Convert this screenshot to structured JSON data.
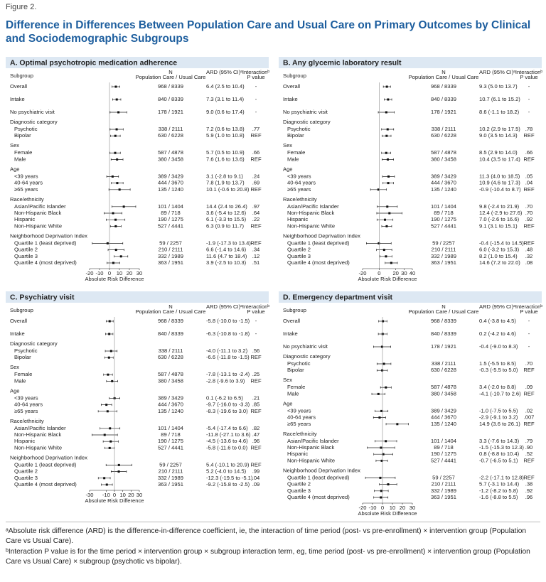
{
  "header": {
    "label": "Figure 2.",
    "title": "Difference in Differences Between Population Care and Usual Care on Primary Outcomes by Clinical and Sociodemographic Subgroups"
  },
  "chart_data": [
    {
      "type": "forest",
      "title": "A. Optimal psychotropic medication adherence",
      "column_headers": [
        "Subgroup",
        "N",
        "Population Care / Usual Care",
        "ARD (95% CI)ᵃ",
        "Interactionᵇ",
        "P value"
      ],
      "categories": [
        "Overall",
        "Intake",
        "No psychiatric visit",
        "Diagnostic category",
        "Psychotic",
        "Bipolar",
        "Sex",
        "Female",
        "Male",
        "Age",
        "<39 years",
        "40-64 years",
        "≥65 years",
        "Race/ethnicity",
        "Asian/Pacific Islander",
        "Non-Hispanic Black",
        "Hispanic",
        "Non-Hispanic White",
        "Neighborhood Deprivation Index",
        "Quartile 1 (least deprived)",
        "Quartile 2",
        "Quartile 3",
        "Quartile 4 (most deprived)"
      ],
      "n_labels": [
        "968 / 8339",
        "840 / 8339",
        "178 / 1921",
        null,
        "338 / 2111",
        "630 / 6228",
        null,
        "587 / 4878",
        "380 / 3458",
        null,
        "389 / 3429",
        "444 / 3670",
        "135 / 1240",
        null,
        "101 / 1404",
        "89 / 718",
        "190 / 1275",
        "527 / 4441",
        null,
        "59 / 2257",
        "210 / 2111",
        "332 / 1989",
        "363 / 1951"
      ],
      "values": [
        6.4,
        7.3,
        9.0,
        null,
        7.2,
        5.9,
        null,
        5.7,
        7.6,
        null,
        3.1,
        7.8,
        10.1,
        null,
        14.4,
        3.6,
        6.1,
        6.3,
        null,
        -1.9,
        6.6,
        11.6,
        3.9
      ],
      "lower": [
        2.5,
        3.1,
        0.6,
        null,
        0.6,
        1.0,
        null,
        0.5,
        1.6,
        null,
        -2.8,
        1.9,
        -0.6,
        null,
        2.4,
        -5.4,
        -3.3,
        0.9,
        null,
        -17.3,
        -1.4,
        4.7,
        -2.5
      ],
      "upper": [
        10.4,
        11.4,
        17.4,
        null,
        13.8,
        10.8,
        null,
        10.9,
        13.6,
        null,
        9.1,
        13.7,
        20.8,
        null,
        26.4,
        12.6,
        15.5,
        11.7,
        null,
        13.4,
        14.6,
        18.4,
        10.3
      ],
      "value_labels": [
        "6.4 (2.5 to 10.4)",
        "7.3 (3.1 to 11.4)",
        "9.0 (0.6 to 17.4)",
        null,
        "7.2 (0.6 to 13.8)",
        "5.9 (1.0 to 10.8)",
        null,
        "5.7 (0.5 to 10.9)",
        "7.6 (1.6 to 13.6)",
        null,
        "3.1 (-2.8 to 9.1)",
        "7.8 (1.9 to 13.7)",
        "10.1 (-0.6 to 20.8)",
        null,
        "14.4 (2.4 to 26.4)",
        "3.6 (-5.4 to 12.6)",
        "6.1 (-3.3 to 15.5)",
        "6.3 (0.9 to 11.7)",
        null,
        "-1.9 (-17.3 to 13.4)",
        "6.6 (-1.4 to 14.6)",
        "11.6 (4.7 to 18.4)",
        "3.9 (-2.5 to 10.3)"
      ],
      "p_values": [
        "-",
        "-",
        "-",
        null,
        ".77",
        "REF",
        null,
        ".66",
        "REF",
        null,
        ".24",
        ".69",
        "REF",
        null,
        ".97",
        ".64",
        ".22",
        "REF",
        null,
        "REF",
        ".34",
        ".12",
        ".51"
      ],
      "xlabel": "Absolute Risk Difference",
      "xlim": [
        -20,
        30
      ],
      "xticks": [
        -20,
        -10,
        0,
        10,
        20,
        30
      ]
    },
    {
      "type": "forest",
      "title": "B. Any glycemic laboratory result",
      "column_headers": [
        "Subgroup",
        "N",
        "Population Care / Usual Care",
        "ARD (95% CI)ᵃ",
        "Interactionᵇ",
        "P value"
      ],
      "categories": [
        "Overall",
        "Intake",
        "No psychiatric visit",
        "Diagnostic category",
        "Psychotic",
        "Bipolar",
        "Sex",
        "Female",
        "Male",
        "Age",
        "<39 years",
        "40-64 years",
        "≥65 years",
        "Race/ethnicity",
        "Asian/Pacific Islander",
        "Non-Hispanic Black",
        "Hispanic",
        "Non-Hispanic White",
        "Neighborhood Deprivation Index",
        "Quartile 1 (least deprived)",
        "Quartile 2",
        "Quartile 3",
        "Quartile 4 (most deprived)"
      ],
      "n_labels": [
        "968 / 8339",
        "840 / 8339",
        "178 / 1921",
        null,
        "338 / 2111",
        "630 / 6228",
        null,
        "587 / 4878",
        "380 / 3458",
        null,
        "389 / 3429",
        "444 / 3670",
        "135 / 1240",
        null,
        "101 / 1404",
        "89 / 718",
        "190 / 1275",
        "527 / 4441",
        null,
        "59 / 2257",
        "210 / 2111",
        "332 / 1989",
        "363 / 1951"
      ],
      "values": [
        9.3,
        10.7,
        8.6,
        null,
        10.2,
        9.0,
        null,
        8.5,
        10.4,
        null,
        11.3,
        10.9,
        -0.9,
        null,
        9.8,
        12.4,
        7.0,
        9.1,
        null,
        -0.4,
        6.0,
        8.2,
        14.6
      ],
      "lower": [
        5.0,
        6.1,
        -1.1,
        null,
        2.9,
        3.5,
        null,
        2.9,
        3.5,
        null,
        4.0,
        4.6,
        -10.4,
        null,
        -2.4,
        -2.9,
        -2.6,
        3.1,
        null,
        -15.4,
        -3.2,
        1.0,
        7.2
      ],
      "upper": [
        13.7,
        15.2,
        18.2,
        null,
        17.5,
        14.3,
        null,
        14.0,
        17.4,
        null,
        18.5,
        17.3,
        8.7,
        null,
        21.9,
        27.6,
        16.6,
        15.1,
        null,
        14.5,
        15.3,
        15.4,
        22.0
      ],
      "value_labels": [
        "9.3 (5.0 to 13.7)",
        "10.7 (6.1 to 15.2)",
        "8.6 (-1.1 to 18.2)",
        null,
        "10.2 (2.9 to 17.5)",
        "9.0 (3.5 to 14.3)",
        null,
        "8.5 (2.9 to 14.0)",
        "10.4 (3.5 to 17.4)",
        null,
        "11.3 (4.0 to 18.5)",
        "10.9 (4.6 to 17.3)",
        "-0.9 (-10.4 to 8.7)",
        null,
        "9.8 (-2.4 to 21.9)",
        "12.4 (-2.9 to 27.6)",
        "7.0 (-2.6 to 16.6)",
        "9.1 (3.1 to 15.1)",
        null,
        "-0.4 (-15.4 to 14.5)",
        "6.0 (-3.2 to 15.3)",
        "8.2 (1.0 to 15.4)",
        "14.6 (7.2 to 22.0)"
      ],
      "p_values": [
        "-",
        "-",
        "-",
        null,
        ".78",
        "REF",
        null,
        ".66",
        "REF",
        null,
        ".05",
        ".04",
        "REF",
        null,
        ".70",
        ".70",
        ".92",
        "REF",
        null,
        "REF",
        ".48",
        ".32",
        ".08"
      ],
      "xlabel": "Absolute Risk Difference",
      "xlim": [
        -20,
        40
      ],
      "xticks": [
        -20,
        0,
        20,
        30,
        40
      ]
    },
    {
      "type": "forest",
      "title": "C. Psychiatry visit",
      "column_headers": [
        "Subgroup",
        "N",
        "Population Care / Usual Care",
        "ARD (95% CI)ᵃ",
        "Interactionᵇ",
        "P value"
      ],
      "categories": [
        "Overall",
        "Intake",
        "Diagnostic category",
        "Psychotic",
        "Bipolar",
        "Sex",
        "Female",
        "Male",
        "Age",
        "<39 years",
        "40-64 years",
        "≥65 years",
        "Race/ethnicity",
        "Asian/Pacific Islander",
        "Non-Hispanic Black",
        "Hispanic",
        "Non-Hispanic White",
        "Neighborhood Deprivation Index",
        "Quartile 1 (least deprived)",
        "Quartile 2",
        "Quartile 3",
        "Quartile 4 (most deprived)"
      ],
      "n_labels": [
        "968 / 8339",
        "840 / 8339",
        null,
        "338 / 2111",
        "630 / 6228",
        null,
        "587 / 4878",
        "380 / 3458",
        null,
        "389 / 3429",
        "444 / 3670",
        "135 / 1240",
        null,
        "101 / 1404",
        "89 / 718",
        "190 / 1275",
        "527 / 4441",
        null,
        "59 / 2257",
        "210 / 2111",
        "332 / 1989",
        "363 / 1951"
      ],
      "values": [
        -5.8,
        -6.3,
        null,
        -4.0,
        -6.6,
        null,
        -7.8,
        -2.8,
        null,
        0.1,
        -9.7,
        -8.3,
        null,
        -5.4,
        -11.8,
        -4.5,
        -5.8,
        null,
        5.4,
        5.2,
        -12.3,
        -9.2
      ],
      "lower": [
        -10.0,
        -10.8,
        null,
        -11.1,
        -11.8,
        null,
        -13.1,
        -9.6,
        null,
        -6.2,
        -16.0,
        -19.6,
        null,
        -17.4,
        -27.1,
        -13.6,
        -11.6,
        null,
        -10.1,
        -4.0,
        -19.5,
        -15.8
      ],
      "upper": [
        -1.5,
        -1.8,
        null,
        3.2,
        -1.5,
        null,
        -2.4,
        3.9,
        null,
        6.5,
        -3.3,
        3.0,
        null,
        6.6,
        3.6,
        4.6,
        0.0,
        null,
        20.9,
        14.5,
        -5.1,
        -2.5
      ],
      "value_labels": [
        "-5.8 (-10.0 to -1.5)",
        "-6.3 (-10.8 to -1.8)",
        null,
        "-4.0 (-11.1 to 3.2)",
        "-6.6 (-11.8 to -1.5)",
        null,
        "-7.8 (-13.1 to -2.4)",
        "-2.8 (-9.6 to 3.9)",
        null,
        "0.1 (-6.2 to 6.5)",
        "-9.7 (-16.0 to -3.3)",
        "-8.3 (-19.6 to 3.0)",
        null,
        "-5.4 (-17.4 to 6.6)",
        "-11.8 (-27.1 to 3.6)",
        "-4.5 (-13.6 to 4.6)",
        "-5.8 (-11.6 to 0.0)",
        null,
        "5.4 (-10.1 to 20.9)",
        "5.2 (-4.0 to 14.5)",
        "-12.3 (-19.5 to -5.1)",
        "-9.2 (-15.8 to -2.5)"
      ],
      "p_values": [
        "-",
        "-",
        null,
        ".56",
        "REF",
        null,
        ".25",
        "REF",
        null,
        ".21",
        ".85",
        "REF",
        null,
        ".82",
        ".47",
        ".96",
        "REF",
        null,
        "REF",
        ".99",
        ".04",
        ".09"
      ],
      "xlabel": "Absolute Risk Difference",
      "xlim": [
        -30,
        30
      ],
      "xticks": [
        -30,
        -10,
        0,
        10,
        20,
        30
      ]
    },
    {
      "type": "forest",
      "title": "D. Emergency department visit",
      "column_headers": [
        "Subgroup",
        "N",
        "Population Care / Usual Care",
        "ARD (95% CI)ᵃ",
        "Interactionᵇ",
        "P value"
      ],
      "categories": [
        "Overall",
        "Intake",
        "No psychiatric visit",
        "Diagnostic category",
        "Psychotic",
        "Bipolar",
        "Sex",
        "Female",
        "Male",
        "Age",
        "<39 years",
        "40-64 years",
        "≥65 years",
        "Race/ethnicity",
        "Asian/Pacific Islander",
        "Non-Hispanic Black",
        "Hispanic",
        "Non-Hispanic White",
        "Neighborhood Deprivation Index",
        "Quartile 1 (least deprived)",
        "Quartile 2",
        "Quartile 3",
        "Quartile 4 (most deprived)"
      ],
      "n_labels": [
        "968 / 8339",
        "840 / 8339",
        "178 / 1921",
        null,
        "338 / 2111",
        "630 / 6228",
        null,
        "587 / 4878",
        "380 / 3458",
        null,
        "389 / 3429",
        "444 / 3670",
        "135 / 1240",
        null,
        "101 / 1404",
        "89 / 718",
        "190 / 1275",
        "527 / 4441",
        null,
        "59 / 2257",
        "210 / 2111",
        "332 / 1989",
        "363 / 1951"
      ],
      "values": [
        0.4,
        0.2,
        -0.4,
        null,
        1.5,
        -0.3,
        null,
        3.4,
        -4.1,
        null,
        -1.0,
        -2.9,
        14.9,
        null,
        3.3,
        -1.5,
        0.8,
        -0.7,
        null,
        -2.2,
        5.7,
        -1.2,
        -1.6
      ],
      "lower": [
        -3.8,
        -4.2,
        -9.0,
        null,
        -5.5,
        -5.5,
        null,
        -2.0,
        -10.7,
        null,
        -7.5,
        -9.1,
        3.6,
        null,
        -7.6,
        -15.3,
        -8.8,
        -6.5,
        null,
        -17.1,
        -3.1,
        -8.2,
        -8.8
      ],
      "upper": [
        4.5,
        4.6,
        8.3,
        null,
        8.5,
        5.0,
        null,
        8.8,
        2.6,
        null,
        5.5,
        3.2,
        26.1,
        null,
        14.3,
        12.3,
        10.4,
        5.1,
        null,
        12.8,
        14.4,
        5.8,
        5.5
      ],
      "value_labels": [
        "0.4 (-3.8 to 4.5)",
        "0.2 (-4.2 to 4.6)",
        "-0.4 (-9.0 to 8.3)",
        null,
        "1.5 (-5.5 to 8.5)",
        "-0.3 (-5.5 to 5.0)",
        null,
        "3.4 (-2.0 to 8.8)",
        "-4.1 (-10.7 to 2.6)",
        null,
        "-1.0 (-7.5 to 5.5)",
        "-2.9 (-9.1 to 3.2)",
        "14.9 (3.6 to 26.1)",
        null,
        "3.3 (-7.6 to 14.3)",
        "-1.5 (-15.3 to 12.3)",
        "0.8 (-8.8 to 10.4)",
        "-0.7 (-6.5 to 5.1)",
        null,
        "-2.2 (-17.1 to 12.8)",
        "5.7 (-3.1 to 14.4)",
        "-1.2 (-8.2 to 5.8)",
        "-1.6 (-8.8 to 5.5)"
      ],
      "p_values": [
        "-",
        "-",
        "-",
        null,
        ".70",
        "REF",
        null,
        ".09",
        "REF",
        null,
        ".02",
        ".007",
        "REF",
        null,
        ".79",
        ".90",
        ".52",
        "REF",
        null,
        "REF",
        ".38",
        ".92",
        ".96"
      ],
      "xlabel": "Absolute Risk Difference",
      "xlim": [
        -20,
        30
      ],
      "xticks": [
        -20,
        -10,
        0,
        10,
        20,
        30
      ]
    }
  ],
  "footnotes": [
    "ᵃAbsolute risk difference (ARD) is the difference-in-difference coefficient, ie, the interaction of time period (post- vs pre-enrollment) × intervention group (Population Care vs Usual Care).",
    "ᵇInteraction P value is for the time period × intervention group × subgroup interaction term, eg, time period (post- vs pre-enrollment) × intervention group (Population Care vs Usual Care) × subgroup (psychotic vs bipolar)."
  ]
}
